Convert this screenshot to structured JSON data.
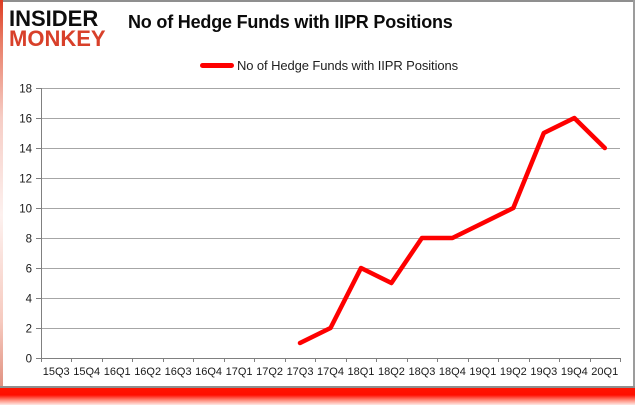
{
  "page": {
    "logo": {
      "line1": "INSIDER",
      "line2": "MONKEY"
    },
    "title": "No of Hedge Funds with IIPR Positions",
    "legend": {
      "label": "No of Hedge Funds with IIPR Positions"
    }
  },
  "colors": {
    "line": "#fe0000",
    "logo_red": "#d8402a",
    "gridline": "#a6a6a6",
    "axis": "#808080",
    "tick_label": "#1a1a1a",
    "frame_red": "#ff1400",
    "frame_gray": "#8f8f8f"
  },
  "chart_data": {
    "type": "line",
    "title": "No of Hedge Funds with IIPR Positions",
    "categories": [
      "15Q3",
      "15Q4",
      "16Q1",
      "16Q2",
      "16Q3",
      "16Q4",
      "17Q1",
      "17Q2",
      "17Q3",
      "17Q4",
      "18Q1",
      "18Q2",
      "18Q3",
      "18Q4",
      "19Q1",
      "19Q2",
      "19Q3",
      "19Q4",
      "20Q1"
    ],
    "series": [
      {
        "name": "No of Hedge Funds with IIPR Positions",
        "values": [
          null,
          null,
          null,
          null,
          null,
          null,
          null,
          null,
          1,
          2,
          6,
          5,
          8,
          8,
          9,
          10,
          15,
          16,
          14
        ]
      }
    ],
    "ylim": [
      0,
      18
    ],
    "yticks": [
      0,
      2,
      4,
      6,
      8,
      10,
      12,
      14,
      16,
      18
    ],
    "grid": true,
    "legend_position": "top"
  }
}
